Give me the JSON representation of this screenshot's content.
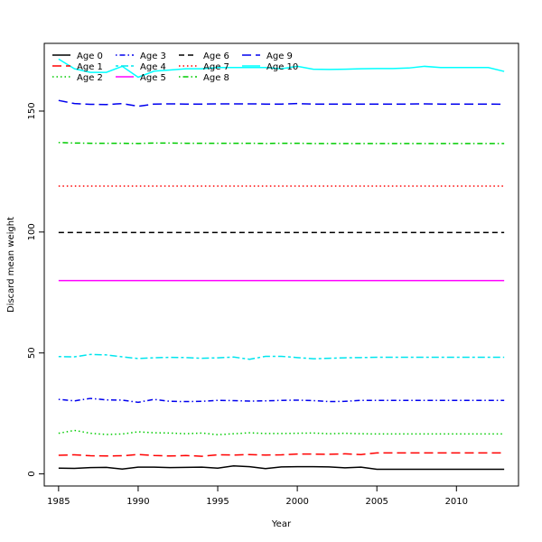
{
  "chart_data": {
    "type": "line",
    "title": "",
    "xlabel": "Year",
    "ylabel": "Discard mean weight",
    "xlim": [
      1984.1,
      2013.9
    ],
    "ylim": [
      -5,
      178
    ],
    "x_ticks": [
      1985,
      1990,
      1995,
      2000,
      2005,
      2010
    ],
    "y_ticks": [
      0,
      50,
      100,
      150
    ],
    "grid": false,
    "legend_position": "top-left",
    "x": [
      1985,
      1986,
      1987,
      1988,
      1989,
      1990,
      1991,
      1992,
      1993,
      1994,
      1995,
      1996,
      1997,
      1998,
      1999,
      2000,
      2001,
      2002,
      2003,
      2004,
      2005,
      2006,
      2007,
      2008,
      2009,
      2010,
      2011,
      2012,
      2013
    ],
    "series": [
      {
        "name": "Age 0",
        "color": "#000000",
        "dash": "solid",
        "values": [
          2.4,
          2.3,
          2.6,
          2.7,
          2.0,
          2.8,
          2.8,
          2.6,
          2.7,
          2.8,
          2.4,
          3.3,
          3.0,
          2.2,
          2.9,
          3.0,
          3.0,
          2.9,
          2.5,
          2.8,
          1.9,
          1.9,
          1.9,
          1.9,
          1.9,
          1.9,
          1.9,
          1.9,
          1.9
        ]
      },
      {
        "name": "Age 1",
        "color": "#ff0000",
        "dash": "longdash",
        "values": [
          7.7,
          7.9,
          7.5,
          7.4,
          7.5,
          8.0,
          7.6,
          7.4,
          7.6,
          7.3,
          7.9,
          7.8,
          8.0,
          7.8,
          7.9,
          8.2,
          8.2,
          8.1,
          8.3,
          8.0,
          8.7,
          8.7,
          8.7,
          8.7,
          8.7,
          8.7,
          8.7,
          8.7,
          8.7
        ]
      },
      {
        "name": "Age 2",
        "color": "#00cc00",
        "dash": "dotted",
        "values": [
          16.8,
          18.0,
          16.8,
          16.3,
          16.5,
          17.4,
          17.0,
          16.9,
          16.6,
          16.9,
          16.2,
          16.6,
          17.0,
          16.7,
          16.7,
          16.8,
          16.9,
          16.6,
          16.8,
          16.6,
          16.5,
          16.5,
          16.5,
          16.5,
          16.5,
          16.5,
          16.5,
          16.5,
          16.5
        ]
      },
      {
        "name": "Age 3",
        "color": "#0000ee",
        "dash": "dotdash",
        "values": [
          30.8,
          30.2,
          31.2,
          30.6,
          30.5,
          29.6,
          30.8,
          30.0,
          29.9,
          30.0,
          30.4,
          30.3,
          30.1,
          30.2,
          30.4,
          30.5,
          30.3,
          29.9,
          30.0,
          30.4,
          30.4,
          30.4,
          30.4,
          30.4,
          30.4,
          30.4,
          30.4,
          30.4,
          30.4
        ]
      },
      {
        "name": "Age 4",
        "color": "#00e5ee",
        "dash": "twodash",
        "values": [
          48.5,
          48.4,
          49.4,
          49.2,
          48.4,
          47.7,
          48.0,
          48.2,
          48.1,
          47.8,
          48.0,
          48.3,
          47.4,
          48.6,
          48.6,
          48.1,
          47.6,
          47.8,
          48.0,
          48.1,
          48.2,
          48.2,
          48.2,
          48.2,
          48.2,
          48.2,
          48.2,
          48.2,
          48.2
        ]
      },
      {
        "name": "Age 5",
        "color": "#ff00ff",
        "dash": "solid",
        "values": [
          79.9,
          79.9,
          79.9,
          79.9,
          79.9,
          79.9,
          79.9,
          79.9,
          79.9,
          79.9,
          79.9,
          79.9,
          79.9,
          79.9,
          79.9,
          79.9,
          79.9,
          79.9,
          79.9,
          79.9,
          79.9,
          79.9,
          79.9,
          79.9,
          79.9,
          79.9,
          79.9,
          79.9,
          79.9
        ]
      },
      {
        "name": "Age 6",
        "color": "#000000",
        "dash": "dashed",
        "values": [
          99.8,
          99.8,
          99.8,
          99.8,
          99.8,
          99.8,
          99.8,
          99.8,
          99.8,
          99.8,
          99.8,
          99.8,
          99.8,
          99.8,
          99.8,
          99.8,
          99.8,
          99.8,
          99.8,
          99.8,
          99.8,
          99.8,
          99.8,
          99.8,
          99.8,
          99.8,
          99.8,
          99.8,
          99.8
        ]
      },
      {
        "name": "Age 7",
        "color": "#ff0000",
        "dash": "dotted",
        "values": [
          119.0,
          119.0,
          119.0,
          119.0,
          119.0,
          119.0,
          119.0,
          119.0,
          119.0,
          119.0,
          119.0,
          119.0,
          119.0,
          119.0,
          119.0,
          119.0,
          119.0,
          119.0,
          119.0,
          119.0,
          119.0,
          119.0,
          119.0,
          119.0,
          119.0,
          119.0,
          119.0,
          119.0,
          119.0
        ]
      },
      {
        "name": "Age 8",
        "color": "#00cc00",
        "dash": "dotdash",
        "values": [
          137.0,
          136.8,
          136.7,
          136.7,
          136.7,
          136.6,
          136.8,
          136.8,
          136.7,
          136.7,
          136.7,
          136.7,
          136.7,
          136.6,
          136.7,
          136.7,
          136.6,
          136.6,
          136.6,
          136.6,
          136.6,
          136.6,
          136.6,
          136.6,
          136.6,
          136.6,
          136.6,
          136.6,
          136.6
        ]
      },
      {
        "name": "Age 9",
        "color": "#0000ee",
        "dash": "longdash",
        "values": [
          154.4,
          153.1,
          152.8,
          152.7,
          153.1,
          152.0,
          152.9,
          153.0,
          152.9,
          152.9,
          153.0,
          153.0,
          153.0,
          152.9,
          152.9,
          153.1,
          152.9,
          152.9,
          152.9,
          152.9,
          152.9,
          152.9,
          152.9,
          153.0,
          152.9,
          152.9,
          152.9,
          152.9,
          152.8
        ]
      },
      {
        "name": "Age 10",
        "color": "#00ffff",
        "dash": "solid",
        "values": [
          171.5,
          167.5,
          166.0,
          166.0,
          168.5,
          164.0,
          166.5,
          167.0,
          167.5,
          167.5,
          168.0,
          168.0,
          168.0,
          168.0,
          167.5,
          168.5,
          167.3,
          167.2,
          167.3,
          167.5,
          167.6,
          167.6,
          167.8,
          168.5,
          168.0,
          168.0,
          168.0,
          168.0,
          166.4
        ]
      }
    ]
  }
}
